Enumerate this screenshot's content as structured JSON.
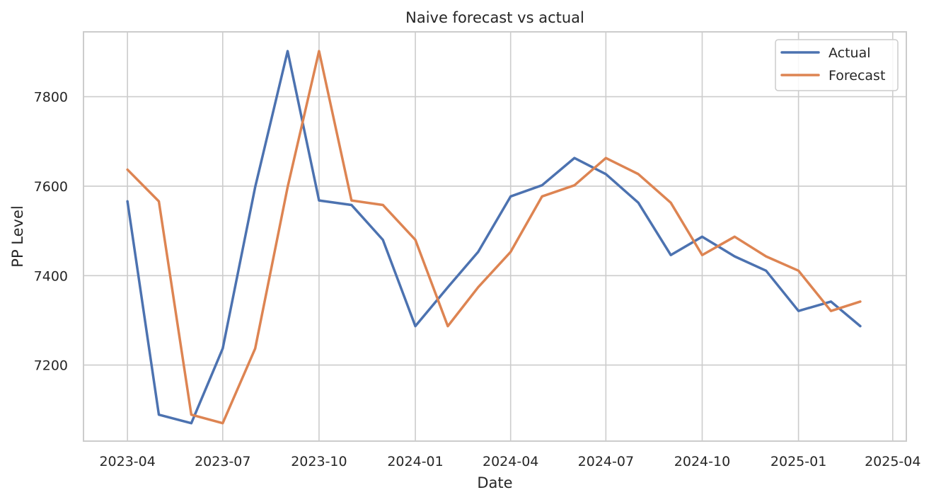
{
  "chart_data": {
    "type": "line",
    "title": "Naive forecast vs actual",
    "xlabel": "Date",
    "ylabel": "PP Level",
    "x": [
      "2023-04-01",
      "2023-05-01",
      "2023-06-01",
      "2023-07-01",
      "2023-08-01",
      "2023-09-01",
      "2023-10-01",
      "2023-11-01",
      "2023-12-01",
      "2024-01-01",
      "2024-02-01",
      "2024-03-01",
      "2024-04-01",
      "2024-05-01",
      "2024-06-01",
      "2024-07-01",
      "2024-08-01",
      "2024-09-01",
      "2024-10-01",
      "2024-11-01",
      "2024-12-01",
      "2025-01-01",
      "2025-02-01",
      "2025-03-01"
    ],
    "series": [
      {
        "name": "Actual",
        "color": "#4c72b0",
        "values": [
          7566,
          7089,
          7070,
          7237,
          7598,
          7902,
          7568,
          7558,
          7480,
          7287,
          7374,
          7453,
          7577,
          7602,
          7663,
          7627,
          7563,
          7446,
          7487,
          7443,
          7411,
          7321,
          7342,
          7287
        ]
      },
      {
        "name": "Forecast",
        "color": "#dd8452",
        "values": [
          7637,
          7566,
          7089,
          7070,
          7237,
          7598,
          7902,
          7568,
          7558,
          7480,
          7287,
          7374,
          7453,
          7577,
          7602,
          7663,
          7627,
          7563,
          7446,
          7487,
          7443,
          7411,
          7321,
          7342
        ]
      }
    ],
    "ylim": [
      7030,
      7945
    ],
    "xlim": [
      "2023-02-18",
      "2025-04-14"
    ],
    "y_ticks": [
      7200,
      7400,
      7600,
      7800
    ],
    "y_tick_labels": [
      "7200",
      "7400",
      "7600",
      "7800"
    ],
    "x_ticks": [
      "2023-04-01",
      "2023-07-01",
      "2023-10-01",
      "2024-01-01",
      "2024-04-01",
      "2024-07-01",
      "2024-10-01",
      "2025-01-01",
      "2025-04-01"
    ],
    "x_tick_labels": [
      "2023-04",
      "2023-07",
      "2023-10",
      "2024-01",
      "2024-04",
      "2024-07",
      "2024-10",
      "2025-01",
      "2025-04"
    ],
    "grid": true,
    "legend_position": "top-right"
  }
}
